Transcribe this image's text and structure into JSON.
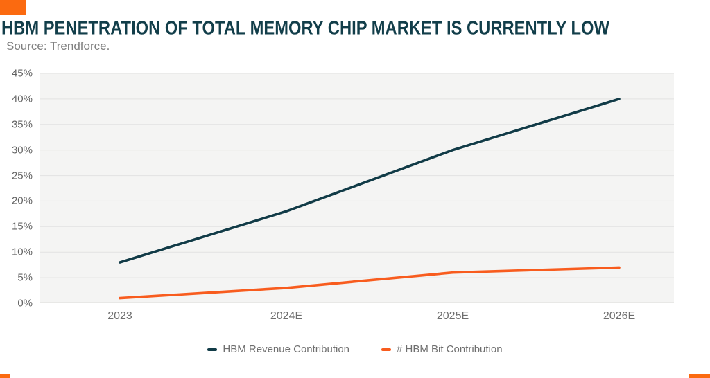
{
  "accent": {
    "orange": "#F85C1E",
    "orange_square": "#FB6A10",
    "dark_teal": "#123E4A"
  },
  "header": {
    "title": "HBM PENETRATION OF TOTAL MEMORY CHIP MARKET IS CURRENTLY LOW",
    "source": "Source: Trendforce."
  },
  "chart_data": {
    "type": "line",
    "categories": [
      "2023",
      "2024E",
      "2025E",
      "2026E"
    ],
    "series": [
      {
        "name": "HBM Revenue Contribution",
        "color": "#113B47",
        "values": [
          8,
          18,
          30,
          40
        ]
      },
      {
        "name": "# HBM Bit Contribution",
        "color": "#F85C1E",
        "values": [
          1,
          3,
          6,
          7
        ]
      }
    ],
    "title": "HBM PENETRATION OF TOTAL MEMORY CHIP MARKET IS CURRENTLY LOW",
    "xlabel": "",
    "ylabel": "",
    "ylim": [
      0,
      45
    ],
    "ytick_step": 5,
    "ytick_labels": [
      "45%",
      "40%",
      "35%",
      "30%",
      "25%",
      "20%",
      "15%",
      "10%",
      "5%",
      "0%"
    ],
    "grid": true,
    "plot_bg": "#F4F4F3",
    "gridline_color": "#E2E2E2",
    "axis_line_color": "#C2C2C2",
    "legend_position": "bottom"
  }
}
